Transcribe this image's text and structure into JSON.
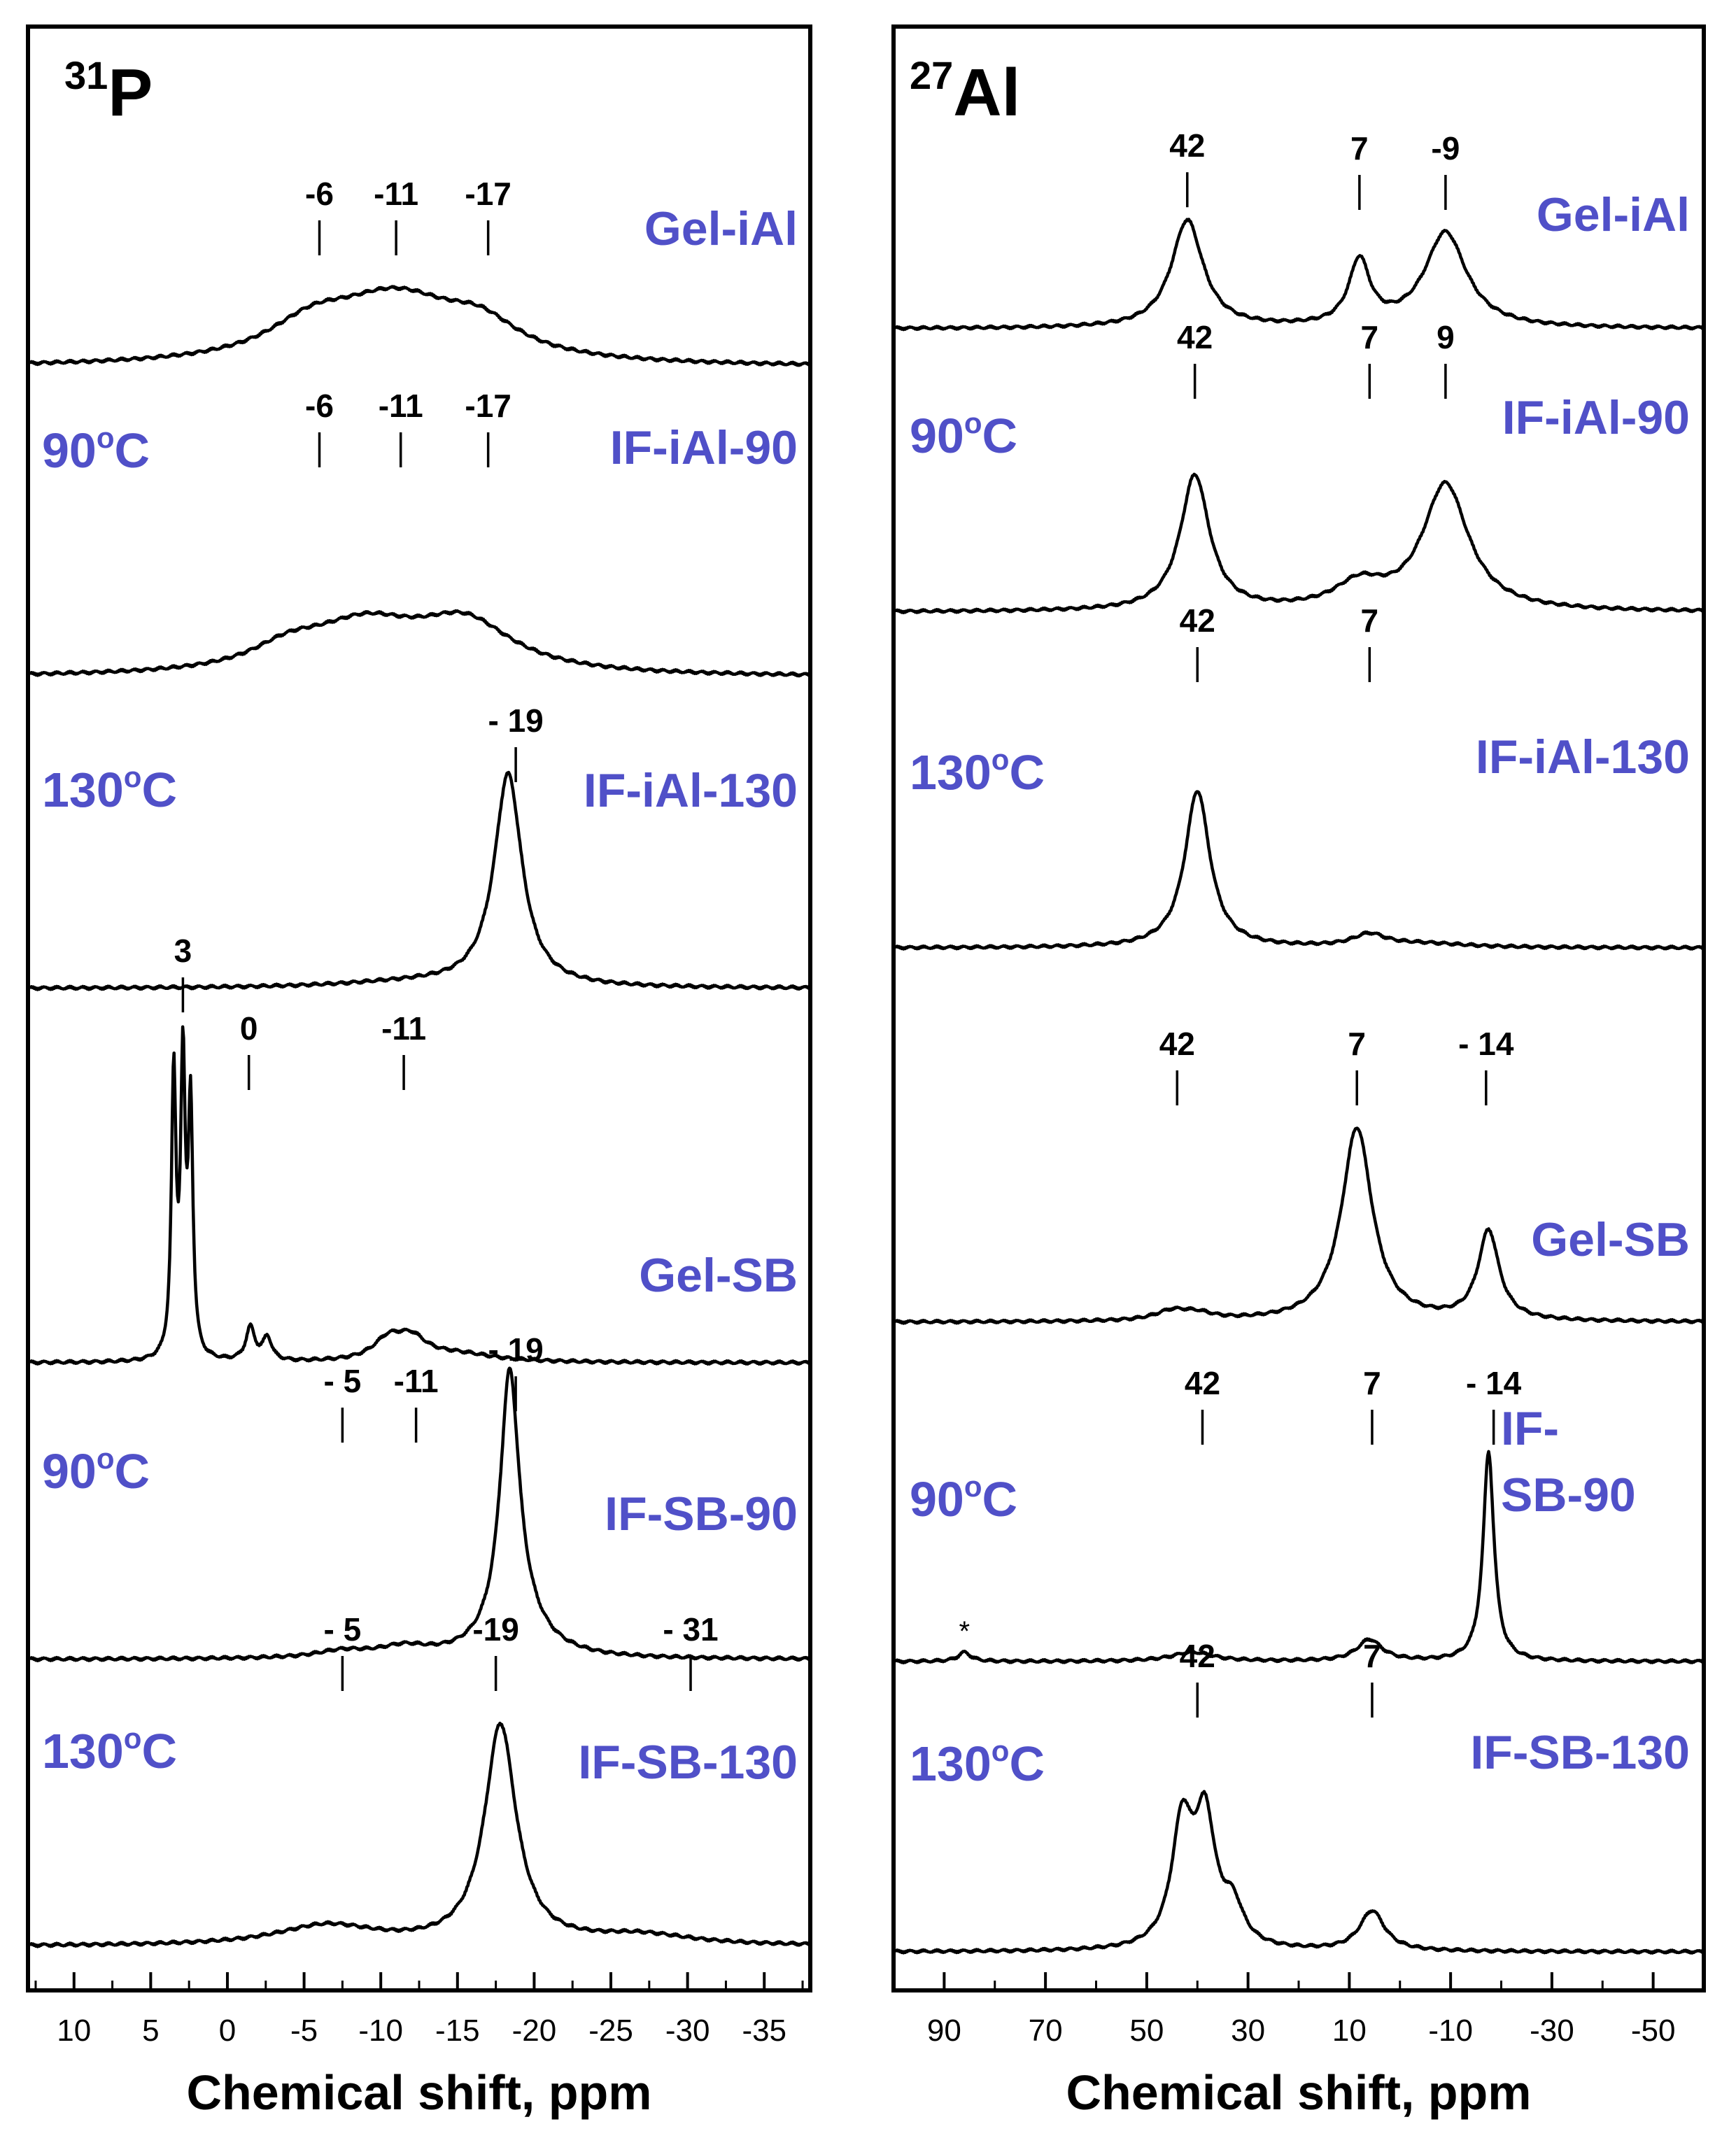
{
  "colors": {
    "label": "#5050c8",
    "trace": "#000000",
    "frame": "#000000"
  },
  "chart_data": [
    {
      "type": "line",
      "title_mass": "31",
      "title_element": "P",
      "xlabel": "Chemical shift, ppm",
      "xlim": [
        13,
        -38
      ],
      "x_reversed": true,
      "xticks": [
        10,
        5,
        0,
        -5,
        -10,
        -15,
        -20,
        -25,
        -30,
        -35
      ],
      "xtick_labels": [
        "10",
        "5",
        "0",
        "-5",
        "-10",
        "-15",
        "-20",
        "-25",
        "-30",
        "-35"
      ],
      "series": [
        {
          "name": "Gel-iAl",
          "temp": "",
          "peaks": [
            {
              "x": -11,
              "h": 0.97,
              "w": 5.2
            },
            {
              "x": -5.5,
              "h": 0.45,
              "w": 3.5
            },
            {
              "x": -16.5,
              "h": 0.42,
              "w": 3
            }
          ],
          "baseline": 0,
          "markers": [
            {
              "label": "-6",
              "x": -6
            },
            {
              "label": "-11",
              "x": -11
            },
            {
              "label": "-17",
              "x": -17
            }
          ]
        },
        {
          "name": "IF-iAl-90",
          "temp": "90oC",
          "peaks": [
            {
              "x": -9,
              "h": 0.7,
              "w": 4.5
            },
            {
              "x": -15.5,
              "h": 0.72,
              "w": 3.8
            },
            {
              "x": -4,
              "h": 0.3,
              "w": 3
            }
          ],
          "baseline": 0,
          "markers": [
            {
              "label": "-6",
              "x": -6
            },
            {
              "label": "-11",
              "x": -11.3
            },
            {
              "label": "-17",
              "x": -17
            }
          ]
        },
        {
          "name": "IF-iAl-130",
          "temp": "130oC",
          "peaks": [
            {
              "x": -18.3,
              "h": 3.2,
              "w": 1.1
            },
            {
              "x": -12,
              "h": 0.08,
              "w": 6
            }
          ],
          "baseline": 0,
          "markers": [
            {
              "label": "- 19",
              "x": -18.8
            }
          ]
        },
        {
          "name": "Gel-SB",
          "temp": "",
          "peaks": [
            {
              "x": 3.5,
              "h": 4.2,
              "w": 0.18
            },
            {
              "x": 2.9,
              "h": 4.3,
              "w": 0.18
            },
            {
              "x": 2.4,
              "h": 3.7,
              "w": 0.18
            },
            {
              "x": -1.5,
              "h": 0.5,
              "w": 0.35
            },
            {
              "x": -2.6,
              "h": 0.35,
              "w": 0.35
            },
            {
              "x": -10.5,
              "h": 0.3,
              "w": 1.2
            },
            {
              "x": -12,
              "h": 0.3,
              "w": 1.2
            },
            {
              "x": -15,
              "h": 0.12,
              "w": 3
            }
          ],
          "baseline": 0,
          "markers": [
            {
              "label": "3",
              "x": 2.9
            },
            {
              "label": "0",
              "x": -1.4
            },
            {
              "label": "-11",
              "x": -11.5
            }
          ]
        },
        {
          "name": "IF-SB-90",
          "temp": "90oC",
          "peaks": [
            {
              "x": -18.4,
              "h": 3.9,
              "w": 0.75
            },
            {
              "x": -11.5,
              "h": 0.15,
              "w": 2
            },
            {
              "x": -7.5,
              "h": 0.1,
              "w": 2
            },
            {
              "x": -19,
              "h": 0.5,
              "w": 2
            }
          ],
          "baseline": 0,
          "markers": [
            {
              "label": "- 5",
              "x": -7.5
            },
            {
              "label": "-11",
              "x": -12.3
            },
            {
              "label": "- 19",
              "x": -18.8
            }
          ]
        },
        {
          "name": "IF-SB-130",
          "temp": "130oC",
          "peaks": [
            {
              "x": -17.8,
              "h": 3.3,
              "w": 1.25
            },
            {
              "x": -6.5,
              "h": 0.3,
              "w": 4
            },
            {
              "x": -27,
              "h": 0.15,
              "w": 4
            }
          ],
          "baseline": 0,
          "markers": [
            {
              "label": "- 5",
              "x": -7.5
            },
            {
              "label": "-19",
              "x": -17.5
            },
            {
              "label": "- 31",
              "x": -30.2
            }
          ]
        }
      ]
    },
    {
      "type": "line",
      "title_mass": "27",
      "title_element": "Al",
      "xlabel": "Chemical shift, ppm",
      "xlim": [
        100,
        -60
      ],
      "x_reversed": true,
      "xticks": [
        90,
        70,
        50,
        30,
        10,
        -10,
        -30,
        -50
      ],
      "xtick_labels": [
        "90",
        "70",
        "50",
        "30",
        "10",
        "-10",
        "-30",
        "-50"
      ],
      "series": [
        {
          "name": "Gel-iAl",
          "temp": "",
          "peaks": [
            {
              "x": 42,
              "h": 1.75,
              "w": 3.8
            },
            {
              "x": 8,
              "h": 1.05,
              "w": 2.5
            },
            {
              "x": -9,
              "h": 1.55,
              "w": 5
            }
          ],
          "baseline": 0,
          "markers": [
            {
              "label": "42",
              "x": 42
            },
            {
              "label": "7",
              "x": 8
            },
            {
              "label": "-9",
              "x": -9
            }
          ]
        },
        {
          "name": "IF-iAl-90",
          "temp": "90oC",
          "peaks": [
            {
              "x": 40.5,
              "h": 2.2,
              "w": 3.5
            },
            {
              "x": -9,
              "h": 2.05,
              "w": 5.5
            },
            {
              "x": 8,
              "h": 0.4,
              "w": 6
            }
          ],
          "baseline": 0,
          "markers": [
            {
              "label": "42",
              "x": 40.5
            },
            {
              "label": "7",
              "x": 6
            },
            {
              "label": "9",
              "x": -9
            }
          ]
        },
        {
          "name": "IF-iAl-130",
          "temp": "130oC",
          "peaks": [
            {
              "x": 40,
              "h": 2.55,
              "w": 3
            },
            {
              "x": 6,
              "h": 0.2,
              "w": 4
            },
            {
              "x": -5,
              "h": 0.06,
              "w": 10
            }
          ],
          "baseline": 0,
          "markers": [
            {
              "label": "42",
              "x": 40
            },
            {
              "label": "7",
              "x": 6
            }
          ]
        },
        {
          "name": "Gel-SB",
          "temp": "",
          "peaks": [
            {
              "x": 8.5,
              "h": 3.15,
              "w": 3.7
            },
            {
              "x": -17.5,
              "h": 1.45,
              "w": 2.5
            },
            {
              "x": 45,
              "h": 0.15,
              "w": 4
            },
            {
              "x": 40,
              "h": 0.1,
              "w": 4
            }
          ],
          "baseline": 0,
          "markers": [
            {
              "label": "42",
              "x": 44
            },
            {
              "label": "7",
              "x": 8.5
            },
            {
              "label": "- 14",
              "x": -17
            }
          ]
        },
        {
          "name": "IF-SB-90",
          "temp": "90oC",
          "peaks": [
            {
              "x": -17.5,
              "h": 3.4,
              "w": 1.3
            },
            {
              "x": 6,
              "h": 0.35,
              "w": 3
            },
            {
              "x": 41,
              "h": 0.15,
              "w": 5
            },
            {
              "x": 86,
              "h": 0.15,
              "w": 1.5
            }
          ],
          "baseline": 0,
          "asterisk": {
            "label": "*",
            "x": 86
          },
          "markers": [
            {
              "label": "42",
              "x": 39
            },
            {
              "label": "7",
              "x": 5.5
            },
            {
              "label": "- 14",
              "x": -18.5
            }
          ]
        },
        {
          "name": "IF-SB-130",
          "temp": "130oC",
          "peaks": [
            {
              "x": 43,
              "h": 1.95,
              "w": 2.5
            },
            {
              "x": 38.5,
              "h": 2.0,
              "w": 2.5
            },
            {
              "x": 33,
              "h": 0.6,
              "w": 2.5
            },
            {
              "x": 5.5,
              "h": 0.65,
              "w": 3
            }
          ],
          "baseline": 0,
          "markers": [
            {
              "label": "42",
              "x": 40
            },
            {
              "label": "7",
              "x": 5.5
            }
          ]
        }
      ]
    }
  ]
}
